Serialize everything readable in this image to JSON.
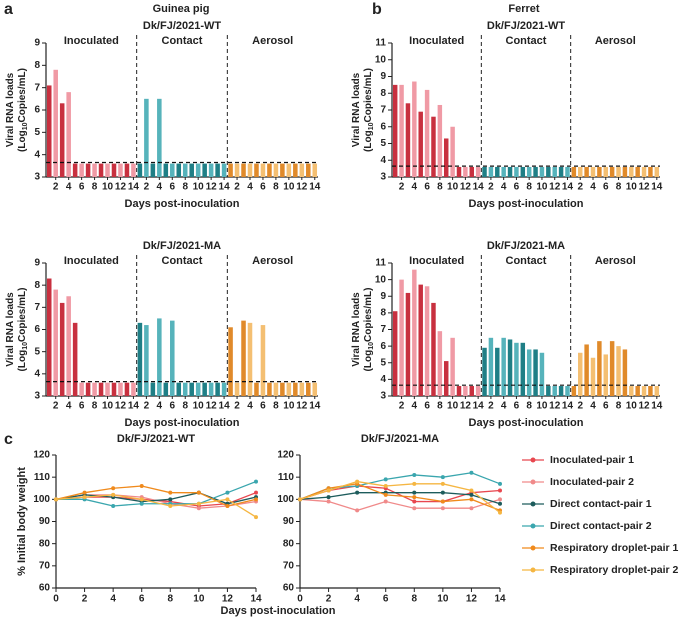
{
  "panels": [
    {
      "letter": "a",
      "title": "Guinea pig"
    },
    {
      "letter": "b",
      "title": "Ferret"
    },
    {
      "letter": "c",
      "xlabel": "Days post-inoculation"
    }
  ],
  "chart_data": [
    {
      "type": "bar",
      "title": "Dk/FJ/2021-WT",
      "ylabel": [
        "Viral RNA loads",
        "(Log",
        "10",
        "Copies/mL)"
      ],
      "xlabel": "Days post-inoculation",
      "categories": [
        null,
        2,
        null,
        4,
        null,
        6,
        null,
        8,
        null,
        10,
        null,
        12,
        null,
        14
      ],
      "ylim": [
        3,
        9
      ],
      "yticks": [
        3,
        4,
        5,
        6,
        7,
        8,
        9
      ],
      "threshold": 3.65,
      "groups": [
        {
          "label": "Inoculated",
          "colors": [
            "#c8303f",
            "#f09aa5"
          ],
          "values": [
            7.1,
            7.8,
            6.3,
            6.8,
            3.6,
            3.6,
            3.6,
            3.6,
            3.6,
            3.6,
            3.6,
            3.6,
            3.6,
            3.6
          ]
        },
        {
          "label": "Contact",
          "colors": [
            "#1f7f86",
            "#56b3bb"
          ],
          "values": [
            3.6,
            6.5,
            3.6,
            6.5,
            3.6,
            3.6,
            3.6,
            3.6,
            3.6,
            3.6,
            3.6,
            3.6,
            3.6,
            3.6
          ]
        },
        {
          "label": "Aerosol",
          "colors": [
            "#e08a2a",
            "#f4bf72"
          ],
          "values": [
            3.6,
            3.6,
            3.6,
            3.6,
            3.6,
            3.6,
            3.6,
            3.6,
            3.6,
            3.6,
            3.6,
            3.6,
            3.6,
            3.6
          ]
        }
      ]
    },
    {
      "type": "bar",
      "title": "Dk/FJ/2021-MA",
      "ylabel": [
        "Viral RNA loads",
        "(Log",
        "10",
        "Copies/mL)"
      ],
      "xlabel": "Days post-inoculation",
      "categories": [
        null,
        2,
        null,
        4,
        null,
        6,
        null,
        8,
        null,
        10,
        null,
        12,
        null,
        14
      ],
      "ylim": [
        3,
        9
      ],
      "yticks": [
        3,
        4,
        5,
        6,
        7,
        8,
        9
      ],
      "threshold": 3.65,
      "groups": [
        {
          "label": "Inoculated",
          "colors": [
            "#c8303f",
            "#f09aa5"
          ],
          "values": [
            8.3,
            7.8,
            7.2,
            7.5,
            6.3,
            3.6,
            3.6,
            3.6,
            3.6,
            3.6,
            3.6,
            3.6,
            3.6,
            3.6
          ]
        },
        {
          "label": "Contact",
          "colors": [
            "#1f7f86",
            "#56b3bb"
          ],
          "values": [
            6.3,
            6.2,
            3.6,
            6.5,
            3.6,
            6.4,
            3.6,
            3.6,
            3.6,
            3.6,
            3.6,
            3.6,
            3.6,
            3.6
          ]
        },
        {
          "label": "Aerosol",
          "colors": [
            "#e08a2a",
            "#f4bf72"
          ],
          "values": [
            6.1,
            3.6,
            6.4,
            6.3,
            3.6,
            6.2,
            3.6,
            3.6,
            3.6,
            3.6,
            3.6,
            3.6,
            3.6,
            3.6
          ]
        }
      ]
    },
    {
      "type": "bar",
      "title": "Dk/FJ/2021-WT",
      "ylabel": [
        "Viral RNA loads",
        "(Log",
        "10",
        "Copies/mL)"
      ],
      "xlabel": "Days post-inoculation",
      "categories": [
        null,
        2,
        null,
        4,
        null,
        6,
        null,
        8,
        null,
        10,
        null,
        12,
        null,
        14
      ],
      "ylim": [
        3,
        11
      ],
      "yticks": [
        3,
        4,
        5,
        6,
        7,
        8,
        9,
        10,
        11
      ],
      "threshold": 3.65,
      "groups": [
        {
          "label": "Inoculated",
          "colors": [
            "#c8303f",
            "#f09aa5"
          ],
          "values": [
            8.5,
            8.5,
            7.4,
            8.7,
            6.9,
            8.2,
            6.6,
            7.3,
            5.3,
            6.0,
            3.6,
            3.6,
            3.6,
            3.6
          ]
        },
        {
          "label": "Contact",
          "colors": [
            "#1f7f86",
            "#56b3bb"
          ],
          "values": [
            3.6,
            3.6,
            3.6,
            3.6,
            3.6,
            3.6,
            3.6,
            3.6,
            3.6,
            3.6,
            3.6,
            3.6,
            3.6,
            3.6
          ]
        },
        {
          "label": "Aerosol",
          "colors": [
            "#e08a2a",
            "#f4bf72"
          ],
          "values": [
            3.6,
            3.6,
            3.6,
            3.6,
            3.6,
            3.6,
            3.6,
            3.6,
            3.6,
            3.6,
            3.6,
            3.6,
            3.6,
            3.6
          ]
        }
      ]
    },
    {
      "type": "bar",
      "title": "Dk/FJ/2021-MA",
      "ylabel": [
        "Viral RNA loads",
        "(Log",
        "10",
        "Copies/mL)"
      ],
      "xlabel": "Days post-inoculation",
      "categories": [
        null,
        2,
        null,
        4,
        null,
        6,
        null,
        8,
        null,
        10,
        null,
        12,
        null,
        14
      ],
      "ylim": [
        3,
        11
      ],
      "yticks": [
        3,
        4,
        5,
        6,
        7,
        8,
        9,
        10,
        11
      ],
      "threshold": 3.65,
      "groups": [
        {
          "label": "Inoculated",
          "colors": [
            "#c8303f",
            "#f09aa5"
          ],
          "values": [
            8.1,
            10.0,
            9.2,
            10.6,
            9.7,
            9.6,
            8.6,
            6.9,
            5.1,
            6.5,
            3.6,
            3.6,
            3.6,
            3.6
          ]
        },
        {
          "label": "Contact",
          "colors": [
            "#1f7f86",
            "#56b3bb"
          ],
          "values": [
            5.9,
            6.5,
            5.9,
            6.5,
            6.4,
            6.2,
            6.2,
            5.8,
            5.8,
            5.6,
            3.6,
            3.6,
            3.6,
            3.6
          ]
        },
        {
          "label": "Aerosol",
          "colors": [
            "#e08a2a",
            "#f4bf72"
          ],
          "values": [
            3.6,
            5.6,
            6.1,
            5.3,
            6.3,
            5.5,
            6.3,
            6.0,
            5.8,
            3.6,
            3.6,
            3.6,
            3.6,
            3.6
          ]
        }
      ]
    },
    {
      "type": "line",
      "title": "Dk/FJ/2021-WT",
      "ylabel": "% Initial body weight",
      "x": [
        0,
        2,
        4,
        6,
        8,
        10,
        12,
        14
      ],
      "xlim": [
        0,
        14
      ],
      "xticks": [
        0,
        2,
        4,
        6,
        8,
        10,
        12,
        14
      ],
      "ylim": [
        60,
        120
      ],
      "yticks": [
        60,
        70,
        80,
        90,
        100,
        110,
        120
      ],
      "series": [
        {
          "color": "#e8474f",
          "values": [
            100,
            101,
            101,
            100,
            99,
            97,
            98,
            103
          ]
        },
        {
          "color": "#f08a8a",
          "values": [
            100,
            102,
            102,
            101,
            98,
            96,
            97,
            99
          ]
        },
        {
          "color": "#1d5c5c",
          "values": [
            100,
            102,
            101,
            99,
            100,
            103,
            98,
            101
          ]
        },
        {
          "color": "#3aa6ae",
          "values": [
            100,
            100,
            97,
            98,
            98,
            98,
            103,
            108
          ]
        },
        {
          "color": "#f08a1c",
          "values": [
            100,
            103,
            105,
            106,
            103,
            103,
            97,
            100
          ]
        },
        {
          "color": "#f5b642",
          "values": [
            100,
            101,
            102,
            100,
            97,
            98,
            100,
            92
          ]
        }
      ]
    },
    {
      "type": "line",
      "title": "Dk/FJ/2021-MA",
      "legend": "right",
      "x": [
        0,
        2,
        4,
        6,
        8,
        10,
        12,
        14
      ],
      "xlim": [
        0,
        14
      ],
      "xticks": [
        0,
        2,
        4,
        6,
        8,
        10,
        12,
        14
      ],
      "ylim": [
        60,
        120
      ],
      "yticks": [
        60,
        70,
        80,
        90,
        100,
        110,
        120
      ],
      "series": [
        {
          "name": "Inoculated-pair 1",
          "color": "#e8474f",
          "values": [
            100,
            104,
            106,
            105,
            99,
            99,
            103,
            104
          ]
        },
        {
          "name": "Inoculated-pair 2",
          "color": "#f08a8a",
          "values": [
            100,
            99,
            95,
            99,
            96,
            96,
            96,
            100
          ]
        },
        {
          "name": "Direct contact-pair 1",
          "color": "#1d5c5c",
          "values": [
            100,
            101,
            103,
            103,
            103,
            103,
            102,
            98
          ]
        },
        {
          "name": "Direct contact-pair 2",
          "color": "#3aa6ae",
          "values": [
            100,
            105,
            106,
            109,
            111,
            110,
            112,
            107
          ]
        },
        {
          "name": "Respiratory droplet-pair 1",
          "color": "#f08a1c",
          "values": [
            100,
            105,
            107,
            102,
            101,
            99,
            100,
            95
          ]
        },
        {
          "name": "Respiratory droplet-pair 2",
          "color": "#f5b642",
          "values": [
            100,
            104,
            108,
            106,
            107,
            107,
            104,
            94
          ]
        }
      ]
    }
  ]
}
